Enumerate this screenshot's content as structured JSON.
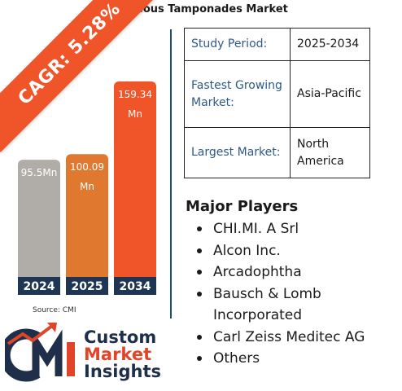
{
  "title": "Vitreous Tamponades Market",
  "cagr_label": "CAGR: 5.28%",
  "chart_data": {
    "type": "bar",
    "categories": [
      "2024",
      "2025",
      "2034"
    ],
    "values": [
      95.5,
      100.09,
      159.34
    ],
    "data_labels": [
      [
        "95.5Mn"
      ],
      [
        "100.09",
        "Mn"
      ],
      [
        "159.34",
        "Mn"
      ]
    ],
    "bar_colors": [
      "#b0aca7",
      "#e07830",
      "#f0552a"
    ],
    "label_bg_color": "#1f3554"
  },
  "source": "Source: CMI",
  "info_table": [
    {
      "label": "Study Period:",
      "value": "2025-2034"
    },
    {
      "label": "Fastest Growing Market:",
      "value": "Asia-Pacific"
    },
    {
      "label": "Largest Market:",
      "value": "North America"
    }
  ],
  "players_heading": "Major Players",
  "players": [
    "CHI.MI. A Srl",
    "Alcon Inc.",
    "Arcadophtha",
    "Bausch & Lomb Incorporated",
    "Carl Zeiss Meditec AG",
    "Others"
  ],
  "logo": {
    "line1": "Custom",
    "line2": "Market",
    "line3": "Insights",
    "mark": "CMI"
  },
  "colors": {
    "accent": "#f0552a",
    "navy": "#1f3554",
    "logo_red": "#e0452a",
    "logo_navy": "#1f2f4a"
  }
}
